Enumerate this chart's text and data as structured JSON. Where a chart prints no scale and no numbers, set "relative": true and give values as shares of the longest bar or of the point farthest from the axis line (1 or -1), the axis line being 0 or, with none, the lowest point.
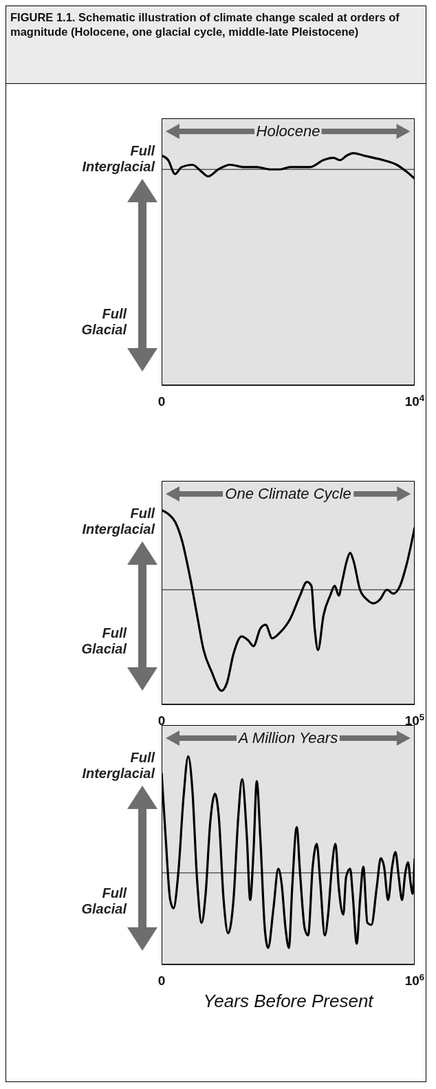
{
  "chart_data": [
    {
      "type": "line",
      "title": "FIGURE 1.1.  Schematic illustration of climate change scaled at orders of magnitude (Holocene, one glacial cycle, middle-late Pleistocene)",
      "subtitle": "Holocene",
      "relative": true,
      "tick_labels": "x",
      "annotations": [
        "Full Interglacial",
        "Full Glacial"
      ],
      "xlim": [
        0,
        10000
      ],
      "xticks": [
        {
          "value": 0,
          "label": "0"
        },
        {
          "value": 10000,
          "label": "10$^{4}$"
        }
      ],
      "ref_lines": [
        {
          "axis": "y",
          "value": 0.93,
          "color": "#000000"
        }
      ],
      "x": [
        0,
        260,
        530,
        790,
        1210,
        1580,
        1840,
        2240,
        2710,
        3240,
        3760,
        4290,
        4680,
        5080,
        5470,
        5870,
        6390,
        6790,
        7050,
        7320,
        7580,
        7970,
        8370,
        8760,
        9290,
        9680,
        10000
      ],
      "series": [
        {
          "color": "#000000",
          "values": [
            0.99,
            0.97,
            0.91,
            0.94,
            0.95,
            0.92,
            0.9,
            0.93,
            0.95,
            0.94,
            0.94,
            0.93,
            0.93,
            0.94,
            0.94,
            0.94,
            0.97,
            0.98,
            0.97,
            0.99,
            1.0,
            0.99,
            0.98,
            0.97,
            0.95,
            0.92,
            0.89
          ]
        }
      ]
    },
    {
      "type": "line",
      "subtitle": "One Climate Cycle",
      "relative": true,
      "tick_labels": "x",
      "annotations": [
        "Full Interglacial",
        "Full Glacial"
      ],
      "xlim": [
        0,
        100000
      ],
      "xticks": [
        {
          "value": 0,
          "label": "0"
        },
        {
          "value": 100000,
          "label": "10$^{5}$"
        }
      ],
      "ref_lines": [
        {
          "axis": "y",
          "value": 0.59,
          "color": "#000000"
        }
      ],
      "x": [
        0,
        2600,
        5300,
        7900,
        11300,
        14000,
        16600,
        19700,
        23700,
        25800,
        28400,
        31600,
        34200,
        36300,
        39000,
        41100,
        43700,
        46800,
        50800,
        54700,
        57400,
        59200,
        60500,
        61800,
        64000,
        66600,
        68400,
        70000,
        71300,
        73200,
        74500,
        75800,
        78400,
        81100,
        83700,
        86300,
        89000,
        91600,
        94200,
        96800,
        100000
      ],
      "series": [
        {
          "color": "#000000",
          "values": [
            1.0,
            0.98,
            0.94,
            0.85,
            0.65,
            0.46,
            0.28,
            0.17,
            0.07,
            0.11,
            0.26,
            0.35,
            0.33,
            0.3,
            0.39,
            0.41,
            0.34,
            0.37,
            0.44,
            0.56,
            0.63,
            0.61,
            0.39,
            0.28,
            0.46,
            0.56,
            0.61,
            0.56,
            0.63,
            0.74,
            0.78,
            0.74,
            0.59,
            0.54,
            0.52,
            0.54,
            0.59,
            0.57,
            0.61,
            0.72,
            0.91
          ]
        }
      ]
    },
    {
      "type": "line",
      "subtitle": "A Million Years",
      "xlabel": "Years Before Present",
      "relative": true,
      "tick_labels": "x",
      "annotations": [
        "Full Interglacial",
        "Full Glacial"
      ],
      "xlim": [
        0,
        1000000
      ],
      "xticks": [
        {
          "value": 0,
          "label": "0"
        },
        {
          "value": 1000000,
          "label": "10$^{6}$"
        }
      ],
      "ref_lines": [
        {
          "axis": "y",
          "value": 0.44,
          "color": "#000000"
        }
      ],
      "x": [
        0,
        16000,
        34000,
        47000,
        66000,
        87000,
        105000,
        121000,
        140000,
        158000,
        174000,
        192000,
        211000,
        226000,
        245000,
        263000,
        284000,
        303000,
        318000,
        337000,
        350000,
        363000,
        376000,
        390000,
        408000,
        421000,
        442000,
        461000,
        474000,
        490000,
        503000,
        516000,
        534000,
        547000,
        566000,
        579000,
        597000,
        613000,
        626000,
        645000,
        658000,
        671000,
        687000,
        700000,
        718000,
        729000,
        745000,
        755000,
        771000,
        784000,
        797000,
        813000,
        829000,
        850000,
        866000,
        879000,
        895000,
        911000,
        924000,
        937000,
        950000,
        963000,
        974000,
        984000,
        992000,
        1000000
      ],
      "series": [
        {
          "color": "#000000",
          "values": [
            0.92,
            0.61,
            0.31,
            0.27,
            0.44,
            0.81,
            1.0,
            0.85,
            0.41,
            0.2,
            0.34,
            0.68,
            0.82,
            0.71,
            0.31,
            0.15,
            0.31,
            0.71,
            0.89,
            0.61,
            0.31,
            0.54,
            0.88,
            0.61,
            0.17,
            0.08,
            0.27,
            0.46,
            0.39,
            0.17,
            0.08,
            0.37,
            0.66,
            0.44,
            0.17,
            0.14,
            0.47,
            0.58,
            0.41,
            0.14,
            0.24,
            0.44,
            0.58,
            0.37,
            0.24,
            0.42,
            0.46,
            0.34,
            0.1,
            0.31,
            0.47,
            0.2,
            0.19,
            0.37,
            0.51,
            0.47,
            0.31,
            0.47,
            0.54,
            0.42,
            0.31,
            0.44,
            0.49,
            0.39,
            0.34,
            0.51
          ]
        }
      ]
    }
  ]
}
